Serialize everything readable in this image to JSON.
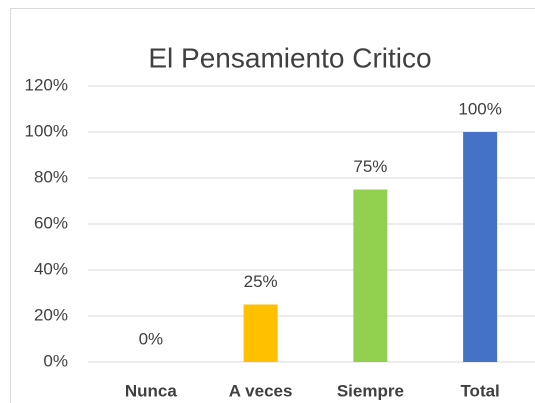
{
  "chart_data": {
    "type": "bar",
    "title": "El Pensamiento Critico",
    "categories": [
      "Nunca",
      "A veces",
      "Siempre",
      "Total"
    ],
    "values": [
      0,
      25,
      75,
      100
    ],
    "value_labels": [
      "0%",
      "25%",
      "75%",
      "100%"
    ],
    "colors": [
      "#ed7d31",
      "#ffc000",
      "#92d050",
      "#4472c4"
    ],
    "ylim": [
      0,
      120
    ],
    "yticks": [
      {
        "value": 0,
        "label": "0%"
      },
      {
        "value": 20,
        "label": "20%"
      },
      {
        "value": 40,
        "label": "40%"
      },
      {
        "value": 60,
        "label": "60%"
      },
      {
        "value": 80,
        "label": "80%"
      },
      {
        "value": 100,
        "label": "100%"
      },
      {
        "value": 120,
        "label": "120%"
      }
    ],
    "grid": true
  }
}
